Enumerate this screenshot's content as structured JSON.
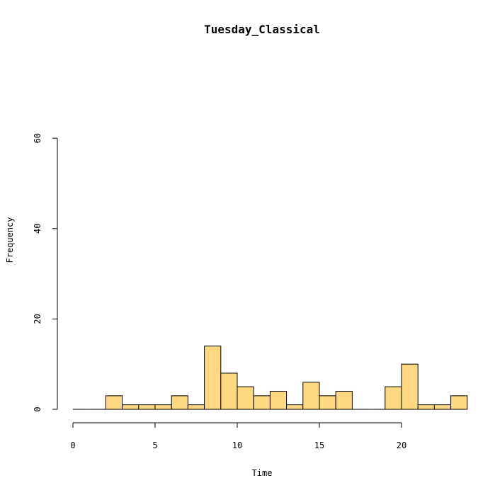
{
  "chart_data": {
    "type": "bar",
    "title": "Tuesday_Classical",
    "xlabel": "Time",
    "ylabel": "Frequency",
    "xlim": [
      0,
      24
    ],
    "ylim": [
      0,
      60
    ],
    "x_ticks": [
      0,
      5,
      10,
      15,
      20
    ],
    "y_ticks": [
      0,
      20,
      40,
      60
    ],
    "bin_width": 1,
    "bins": [
      {
        "x0": 0,
        "value": 0
      },
      {
        "x0": 1,
        "value": 0
      },
      {
        "x0": 2,
        "value": 3
      },
      {
        "x0": 3,
        "value": 1
      },
      {
        "x0": 4,
        "value": 1
      },
      {
        "x0": 5,
        "value": 1
      },
      {
        "x0": 6,
        "value": 3
      },
      {
        "x0": 7,
        "value": 1
      },
      {
        "x0": 8,
        "value": 14
      },
      {
        "x0": 9,
        "value": 8
      },
      {
        "x0": 10,
        "value": 5
      },
      {
        "x0": 11,
        "value": 3
      },
      {
        "x0": 12,
        "value": 4
      },
      {
        "x0": 13,
        "value": 1
      },
      {
        "x0": 14,
        "value": 6
      },
      {
        "x0": 15,
        "value": 3
      },
      {
        "x0": 16,
        "value": 4
      },
      {
        "x0": 17,
        "value": 0
      },
      {
        "x0": 18,
        "value": 0
      },
      {
        "x0": 19,
        "value": 5
      },
      {
        "x0": 20,
        "value": 10
      },
      {
        "x0": 21,
        "value": 1
      },
      {
        "x0": 22,
        "value": 1
      },
      {
        "x0": 23,
        "value": 3
      }
    ],
    "bar_color": "#FFD982",
    "grid": false
  }
}
